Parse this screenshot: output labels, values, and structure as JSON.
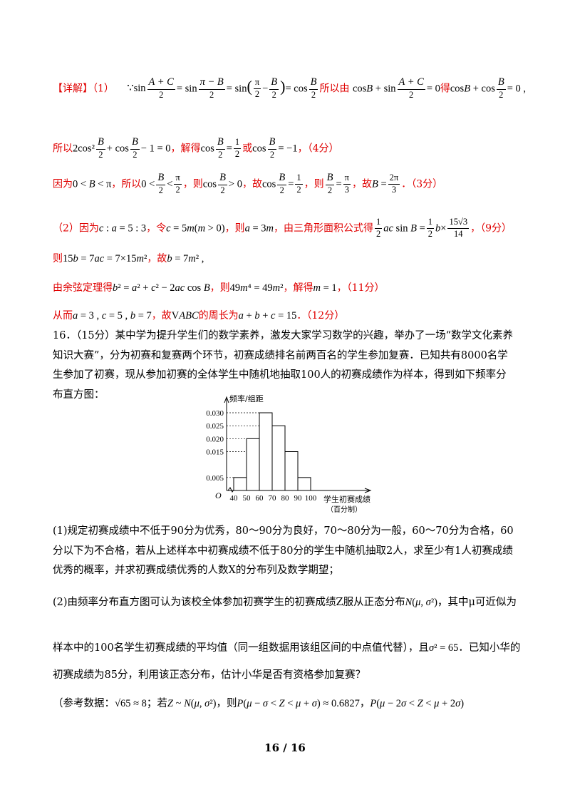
{
  "solution": {
    "l1_tag": "【详解】",
    "l1_part": "（1）",
    "l1_therefore": "所以由",
    "l1_get": "得",
    "l2_so": "所以",
    "l2_solve": "，解得",
    "l2_or": "或",
    "l2_score": "，（4分）",
    "l3_because": "因为",
    "l3_so": "，所以",
    "l3_then": "，则",
    "l3_hence": "，故",
    "l3_score": "．（3分）",
    "l4_part": "（2）因为",
    "l4_let": "，令",
    "l4_then": "，则",
    "l4_area": "，由三角形面积公式得",
    "l4_score": "，（9分）",
    "l5_then": "则",
    "l5_hence": "，故",
    "l6_law": "由余弦定理得",
    "l6_then": "，则",
    "l6_solve": "，解得",
    "l6_score": "，（11分）",
    "l7_thus": "从而",
    "l7_perimeter": "的周长为",
    "l7_score": "．（12分）"
  },
  "problem": {
    "intro": "16．（15分）某中学为提升学生们的数学素养，激发大家学习数学的兴趣，举办了一场“数学文化素养知识大赛”，分为初赛和复赛两个环节，初赛成绩排名前两百名的学生参加复赛．已知共有8000名学生参加了初赛，现从参加初赛的全体学生中随机地抽取100人的初赛成绩作为样本，得到如下频率分布直方图：",
    "q1": "(1)规定初赛成绩中不低于90分为优秀，80～90分为良好，70～80分为一般，60～70分为合格，60分以下为不合格，若从上述样本中初赛成绩不低于80分的学生中随机抽取2人，求至少有1人初赛成绩优秀的概率，并求初赛成绩优秀的人数X的分布列及数学期望；",
    "q2_a": "(2)由频率分布直方图可认为该校全体参加初赛学生的初赛成绩Z服从正态分布",
    "q2_b": "，其中μ可近似为",
    "q2_c": "样本中的100名学生初赛成绩的平均值（同一组数据用该组区间的中点值代替），且",
    "q2_d": "．已知小华的",
    "q2_e": "初赛成绩为85分，利用该正态分布，估计小华是否有资格参加复赛？",
    "ref_a": "（参考数据：",
    "ref_b": "；若",
    "ref_c": "，则",
    "ref_d": "，"
  },
  "chart_data": {
    "type": "bar",
    "title": "",
    "ylabel": "频率/组距",
    "xlabel": "学生初赛成绩",
    "xlabel_sub": "（百分制）",
    "origin": "O",
    "categories": [
      "40-50",
      "50-60",
      "60-70",
      "70-80",
      "80-90",
      "90-100"
    ],
    "x_ticks": [
      "40",
      "50",
      "60",
      "70",
      "80",
      "90",
      "100"
    ],
    "values": [
      0.005,
      0.02,
      0.03,
      0.025,
      0.015,
      0.005
    ],
    "y_ticks": [
      "0.005",
      "0.015",
      "0.020",
      "0.025",
      "0.030"
    ],
    "ylim": [
      0,
      0.033
    ],
    "grid": false
  },
  "footer": {
    "page": "16 / 16"
  }
}
